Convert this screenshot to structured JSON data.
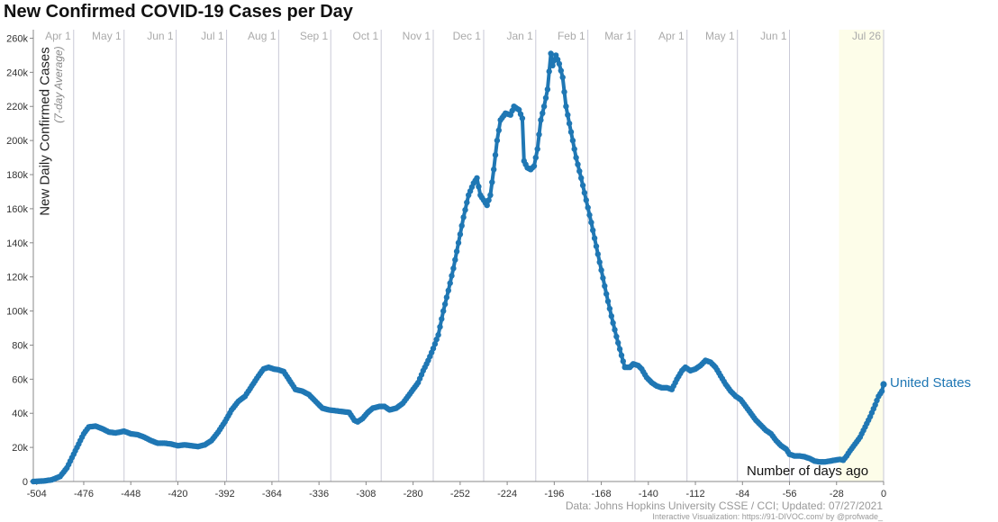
{
  "title": "New Confirmed COVID-19 Cases per Day",
  "source": "Data: Johns Hopkins University CSSE / CCI; Updated: 07/27/2021",
  "attribution": "Interactive Visualization: https://91-DIVOC.com/ by @profwade_",
  "colors": {
    "series": "#1f77b4",
    "grid": "#c9c9d6",
    "axis": "#888888",
    "highlight": "#fdfde9"
  },
  "chart_data": {
    "type": "line",
    "title": "New Confirmed COVID-19 Cases per Day",
    "xlabel": "Number of days ago",
    "ylabel": "New Daily Confirmed Cases",
    "ylabel_sub": "(7-day Average)",
    "xlim": [
      -506,
      0
    ],
    "ylim": [
      0,
      265000
    ],
    "x_ticks": [
      -504,
      -476,
      -448,
      -420,
      -392,
      -364,
      -336,
      -308,
      -280,
      -252,
      -224,
      -196,
      -168,
      -140,
      -112,
      -84,
      -56,
      -28,
      0
    ],
    "y_ticks": [
      {
        "value": 0,
        "label": "0"
      },
      {
        "value": 20000,
        "label": "20k"
      },
      {
        "value": 40000,
        "label": "40k"
      },
      {
        "value": 60000,
        "label": "60k"
      },
      {
        "value": 80000,
        "label": "80k"
      },
      {
        "value": 100000,
        "label": "100k"
      },
      {
        "value": 120000,
        "label": "120k"
      },
      {
        "value": 140000,
        "label": "140k"
      },
      {
        "value": 160000,
        "label": "160k"
      },
      {
        "value": 180000,
        "label": "180k"
      },
      {
        "value": 200000,
        "label": "200k"
      },
      {
        "value": 220000,
        "label": "220k"
      },
      {
        "value": 240000,
        "label": "240k"
      },
      {
        "value": 260000,
        "label": "260k"
      }
    ],
    "month_markers": [
      {
        "label": "Apr 1",
        "x": -482
      },
      {
        "label": "May 1",
        "x": -452
      },
      {
        "label": "Jun 1",
        "x": -421
      },
      {
        "label": "Jul 1",
        "x": -391
      },
      {
        "label": "Aug 1",
        "x": -360
      },
      {
        "label": "Sep 1",
        "x": -329
      },
      {
        "label": "Oct 1",
        "x": -299
      },
      {
        "label": "Nov 1",
        "x": -268
      },
      {
        "label": "Dec 1",
        "x": -238
      },
      {
        "label": "Jan 1",
        "x": -207
      },
      {
        "label": "Feb 1",
        "x": -176
      },
      {
        "label": "Mar 1",
        "x": -148
      },
      {
        "label": "Apr 1",
        "x": -117
      },
      {
        "label": "May 1",
        "x": -87
      },
      {
        "label": "Jun 1",
        "x": -56
      },
      {
        "label": "Jul 26",
        "x": 0
      }
    ],
    "series": [
      {
        "name": "United States",
        "points": [
          [
            -506,
            0
          ],
          [
            -500,
            300
          ],
          [
            -495,
            1000
          ],
          [
            -490,
            3000
          ],
          [
            -486,
            8000
          ],
          [
            -482,
            16000
          ],
          [
            -479,
            22000
          ],
          [
            -476,
            28000
          ],
          [
            -473,
            32000
          ],
          [
            -469,
            32500
          ],
          [
            -465,
            31000
          ],
          [
            -461,
            29000
          ],
          [
            -457,
            28500
          ],
          [
            -452,
            29500
          ],
          [
            -448,
            28000
          ],
          [
            -444,
            27500
          ],
          [
            -440,
            26000
          ],
          [
            -436,
            24000
          ],
          [
            -432,
            22500
          ],
          [
            -428,
            22500
          ],
          [
            -424,
            22000
          ],
          [
            -420,
            21000
          ],
          [
            -416,
            21500
          ],
          [
            -412,
            21000
          ],
          [
            -408,
            20500
          ],
          [
            -404,
            21500
          ],
          [
            -400,
            24000
          ],
          [
            -396,
            29000
          ],
          [
            -392,
            35000
          ],
          [
            -388,
            42000
          ],
          [
            -384,
            47000
          ],
          [
            -380,
            50000
          ],
          [
            -376,
            56000
          ],
          [
            -372,
            62000
          ],
          [
            -369,
            66000
          ],
          [
            -366,
            67000
          ],
          [
            -363,
            66000
          ],
          [
            -360,
            65500
          ],
          [
            -357,
            64500
          ],
          [
            -354,
            60000
          ],
          [
            -350,
            54000
          ],
          [
            -346,
            53000
          ],
          [
            -342,
            51000
          ],
          [
            -338,
            47000
          ],
          [
            -334,
            43000
          ],
          [
            -330,
            42000
          ],
          [
            -326,
            41500
          ],
          [
            -322,
            41000
          ],
          [
            -318,
            40500
          ],
          [
            -315,
            36000
          ],
          [
            -313,
            35000
          ],
          [
            -310,
            37000
          ],
          [
            -307,
            40500
          ],
          [
            -304,
            43000
          ],
          [
            -300,
            44000
          ],
          [
            -297,
            44000
          ],
          [
            -294,
            42000
          ],
          [
            -290,
            43000
          ],
          [
            -286,
            46000
          ],
          [
            -283,
            50000
          ],
          [
            -280,
            54000
          ],
          [
            -277,
            58000
          ],
          [
            -274,
            65000
          ],
          [
            -271,
            71000
          ],
          [
            -268,
            78000
          ],
          [
            -265,
            86000
          ],
          [
            -262,
            100000
          ],
          [
            -259,
            112000
          ],
          [
            -256,
            125000
          ],
          [
            -253,
            140000
          ],
          [
            -250,
            155000
          ],
          [
            -247,
            168000
          ],
          [
            -244,
            175000
          ],
          [
            -242,
            178000
          ],
          [
            -240,
            168000
          ],
          [
            -238,
            165000
          ],
          [
            -236,
            162000
          ],
          [
            -234,
            168000
          ],
          [
            -232,
            183000
          ],
          [
            -230,
            200000
          ],
          [
            -228,
            212000
          ],
          [
            -225,
            216000
          ],
          [
            -222,
            215000
          ],
          [
            -220,
            220000
          ],
          [
            -217,
            218000
          ],
          [
            -215,
            213000
          ],
          [
            -214,
            188000
          ],
          [
            -212,
            184000
          ],
          [
            -210,
            183000
          ],
          [
            -208,
            185000
          ],
          [
            -206,
            195000
          ],
          [
            -204,
            212000
          ],
          [
            -202,
            220000
          ],
          [
            -200,
            230000
          ],
          [
            -198,
            251000
          ],
          [
            -197,
            244000
          ],
          [
            -195,
            250000
          ],
          [
            -193,
            245000
          ],
          [
            -191,
            237000
          ],
          [
            -189,
            220000
          ],
          [
            -186,
            205000
          ],
          [
            -183,
            190000
          ],
          [
            -180,
            178000
          ],
          [
            -177,
            165000
          ],
          [
            -174,
            152000
          ],
          [
            -171,
            138000
          ],
          [
            -168,
            124000
          ],
          [
            -165,
            110000
          ],
          [
            -162,
            97000
          ],
          [
            -159,
            85000
          ],
          [
            -156,
            74000
          ],
          [
            -154,
            67000
          ],
          [
            -151,
            67000
          ],
          [
            -149,
            69000
          ],
          [
            -146,
            68000
          ],
          [
            -144,
            66000
          ],
          [
            -141,
            61000
          ],
          [
            -138,
            58000
          ],
          [
            -135,
            56000
          ],
          [
            -132,
            55000
          ],
          [
            -129,
            55000
          ],
          [
            -126,
            54000
          ],
          [
            -123,
            60000
          ],
          [
            -120,
            65000
          ],
          [
            -118,
            67000
          ],
          [
            -115,
            65000
          ],
          [
            -112,
            66000
          ],
          [
            -109,
            68000
          ],
          [
            -106,
            71000
          ],
          [
            -103,
            70000
          ],
          [
            -100,
            67000
          ],
          [
            -97,
            62000
          ],
          [
            -94,
            57000
          ],
          [
            -91,
            53000
          ],
          [
            -88,
            50000
          ],
          [
            -85,
            48000
          ],
          [
            -82,
            44000
          ],
          [
            -79,
            40000
          ],
          [
            -76,
            36000
          ],
          [
            -73,
            33000
          ],
          [
            -70,
            30000
          ],
          [
            -67,
            28000
          ],
          [
            -64,
            24000
          ],
          [
            -61,
            21000
          ],
          [
            -58,
            19000
          ],
          [
            -56,
            16000
          ],
          [
            -53,
            15000
          ],
          [
            -50,
            15000
          ],
          [
            -47,
            14500
          ],
          [
            -44,
            13500
          ],
          [
            -41,
            12000
          ],
          [
            -38,
            11500
          ],
          [
            -35,
            11500
          ],
          [
            -32,
            12000
          ],
          [
            -29,
            12500
          ],
          [
            -26,
            13000
          ],
          [
            -24,
            12500
          ],
          [
            -22,
            15000
          ],
          [
            -20,
            18000
          ],
          [
            -17,
            22000
          ],
          [
            -14,
            26000
          ],
          [
            -11,
            32000
          ],
          [
            -8,
            38000
          ],
          [
            -5,
            45000
          ],
          [
            -3,
            50000
          ],
          [
            -1,
            53000
          ],
          [
            0,
            57000
          ]
        ]
      }
    ]
  }
}
